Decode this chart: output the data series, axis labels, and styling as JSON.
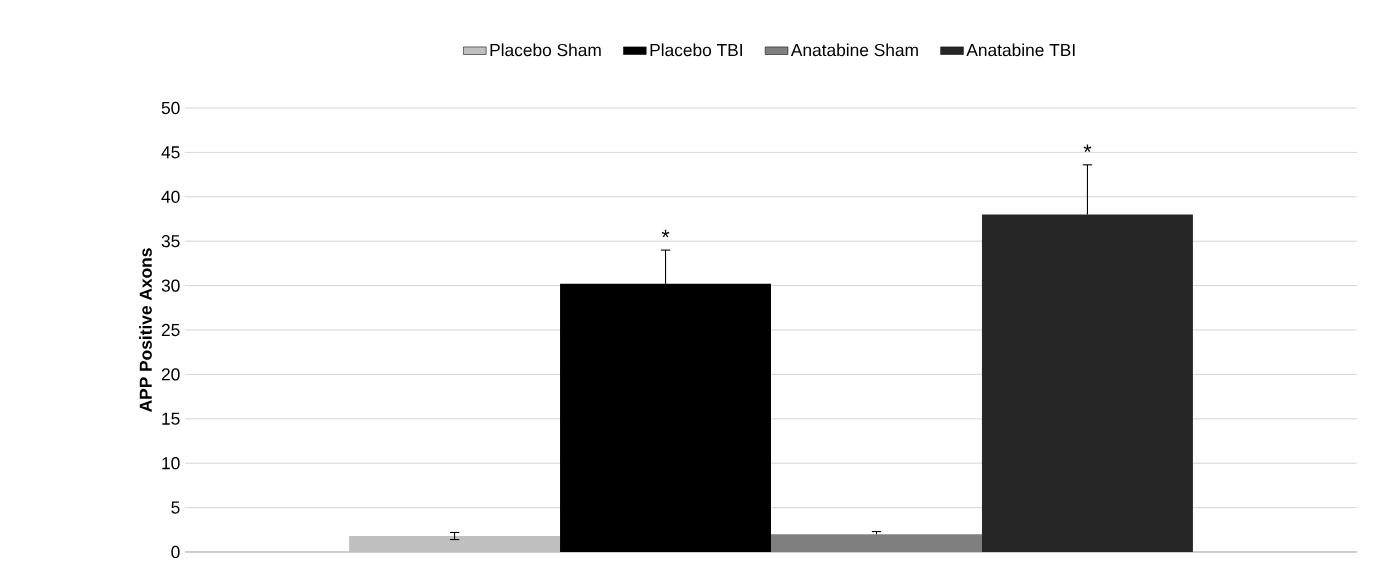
{
  "chart_data": {
    "type": "bar",
    "ylabel": "APP Positive Axons",
    "categories": [
      null
    ],
    "series": [
      {
        "name": "Placebo Sham",
        "color": "#bfbfbf",
        "values": [
          1.8
        ],
        "errors": [
          [
            1.4,
            2.2
          ]
        ],
        "value_labels": [
          null
        ]
      },
      {
        "name": "Placebo TBI",
        "color": "#000000",
        "values": [
          30.2
        ],
        "errors": [
          [
            30.2,
            34.0
          ]
        ],
        "value_labels": [
          "*"
        ]
      },
      {
        "name": "Anatabine Sham",
        "color": "#7f7f7f",
        "values": [
          2.0
        ],
        "errors": [
          [
            2.0,
            2.3
          ]
        ],
        "value_labels": [
          null
        ]
      },
      {
        "name": "Anatabine TBI",
        "color": "#262626",
        "values": [
          38.0
        ],
        "errors": [
          [
            38.0,
            43.6
          ]
        ],
        "value_labels": [
          "*"
        ]
      }
    ],
    "ylim": [
      0,
      50
    ],
    "yticks": [
      0,
      5,
      10,
      15,
      20,
      25,
      30,
      35,
      40,
      45,
      50
    ],
    "grid": "y",
    "legend": "top",
    "tick_labels": "y"
  }
}
